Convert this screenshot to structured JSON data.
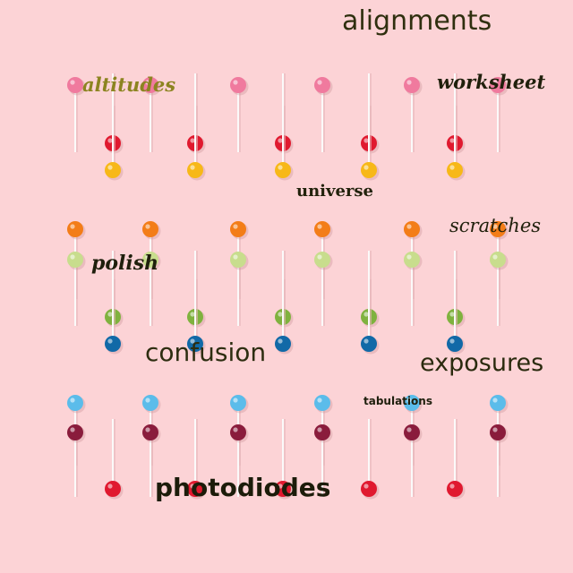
{
  "words": {
    "alignments": "alignments",
    "altitudes": "altitudes",
    "worksheet": "worksheet",
    "universe": "universe",
    "scratches": "scratches",
    "polish": "polish",
    "confusion": "confusion",
    "exposures": "exposures",
    "tabulations": "tabulations",
    "photodiodes": "photodiodes"
  },
  "photo": {
    "subject": "lollipops-on-pink-background",
    "background_color": "#fcd3d6",
    "candy_colors": [
      "#f07a9e",
      "#e0192f",
      "#f7b818",
      "#f37d18",
      "#c8dd8d",
      "#7fb23e",
      "#1169a7",
      "#5bbcea",
      "#8a1c3c"
    ]
  }
}
